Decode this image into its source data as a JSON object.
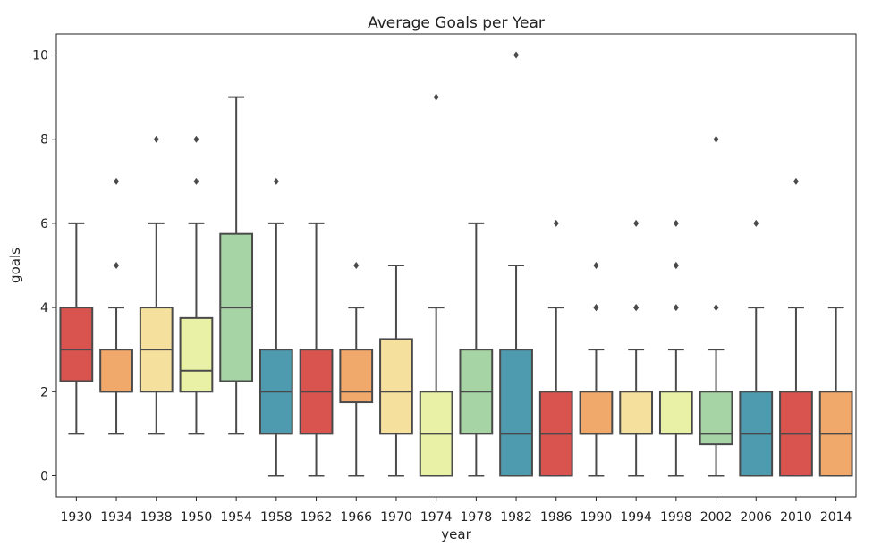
{
  "chart_data": {
    "type": "box",
    "title": "Average Goals per Year",
    "xlabel": "year",
    "ylabel": "goals",
    "ylim": [
      -0.5,
      10.5
    ],
    "yticks": [
      0,
      2,
      4,
      6,
      8,
      10
    ],
    "grid": false,
    "palette": [
      "#d9534f",
      "#f0a86b",
      "#f5e09e",
      "#e8f1a5",
      "#a6d4a4",
      "#4e9bb0"
    ],
    "line_color": "#4a4a4a",
    "categories": [
      "1930",
      "1934",
      "1938",
      "1950",
      "1954",
      "1958",
      "1962",
      "1966",
      "1970",
      "1974",
      "1978",
      "1982",
      "1986",
      "1990",
      "1994",
      "1998",
      "2002",
      "2006",
      "2010",
      "2014"
    ],
    "boxes": [
      {
        "year": "1930",
        "whisker_low": 1,
        "q1": 2.25,
        "median": 3,
        "q3": 4,
        "whisker_high": 6,
        "outliers": []
      },
      {
        "year": "1934",
        "whisker_low": 1,
        "q1": 2,
        "median": 2,
        "q3": 3,
        "whisker_high": 4,
        "outliers": [
          5,
          7
        ]
      },
      {
        "year": "1938",
        "whisker_low": 1,
        "q1": 2,
        "median": 3,
        "q3": 4,
        "whisker_high": 6,
        "outliers": [
          8
        ]
      },
      {
        "year": "1950",
        "whisker_low": 1,
        "q1": 2,
        "median": 2.5,
        "q3": 3.75,
        "whisker_high": 6,
        "outliers": [
          7,
          8
        ]
      },
      {
        "year": "1954",
        "whisker_low": 1,
        "q1": 2.25,
        "median": 4,
        "q3": 5.75,
        "whisker_high": 9,
        "outliers": []
      },
      {
        "year": "1958",
        "whisker_low": 0,
        "q1": 1,
        "median": 2,
        "q3": 3,
        "whisker_high": 6,
        "outliers": [
          7
        ]
      },
      {
        "year": "1962",
        "whisker_low": 0,
        "q1": 1,
        "median": 2,
        "q3": 3,
        "whisker_high": 6,
        "outliers": []
      },
      {
        "year": "1966",
        "whisker_low": 0,
        "q1": 1.75,
        "median": 2,
        "q3": 3,
        "whisker_high": 4,
        "outliers": [
          5
        ]
      },
      {
        "year": "1970",
        "whisker_low": 0,
        "q1": 1,
        "median": 2,
        "q3": 3.25,
        "whisker_high": 5,
        "outliers": []
      },
      {
        "year": "1974",
        "whisker_low": 0,
        "q1": 0,
        "median": 1,
        "q3": 2,
        "whisker_high": 4,
        "outliers": [
          9
        ]
      },
      {
        "year": "1978",
        "whisker_low": 0,
        "q1": 1,
        "median": 2,
        "q3": 3,
        "whisker_high": 6,
        "outliers": []
      },
      {
        "year": "1982",
        "whisker_low": 0,
        "q1": 0,
        "median": 1,
        "q3": 3,
        "whisker_high": 5,
        "outliers": [
          10
        ]
      },
      {
        "year": "1986",
        "whisker_low": 0,
        "q1": 0,
        "median": 1,
        "q3": 2,
        "whisker_high": 4,
        "outliers": [
          6
        ]
      },
      {
        "year": "1990",
        "whisker_low": 0,
        "q1": 1,
        "median": 1,
        "q3": 2,
        "whisker_high": 3,
        "outliers": [
          4,
          4,
          5
        ]
      },
      {
        "year": "1994",
        "whisker_low": 0,
        "q1": 1,
        "median": 1,
        "q3": 2,
        "whisker_high": 3,
        "outliers": [
          4,
          4,
          6
        ]
      },
      {
        "year": "1998",
        "whisker_low": 0,
        "q1": 1,
        "median": 1,
        "q3": 2,
        "whisker_high": 3,
        "outliers": [
          4,
          5,
          5,
          6
        ]
      },
      {
        "year": "2002",
        "whisker_low": 0,
        "q1": 0.75,
        "median": 1,
        "q3": 2,
        "whisker_high": 3,
        "outliers": [
          4,
          8
        ]
      },
      {
        "year": "2006",
        "whisker_low": 0,
        "q1": 0,
        "median": 1,
        "q3": 2,
        "whisker_high": 4,
        "outliers": [
          6
        ]
      },
      {
        "year": "2010",
        "whisker_low": 0,
        "q1": 0,
        "median": 1,
        "q3": 2,
        "whisker_high": 4,
        "outliers": [
          7
        ]
      },
      {
        "year": "2014",
        "whisker_low": 0,
        "q1": 0,
        "median": 1,
        "q3": 2,
        "whisker_high": 4,
        "outliers": []
      }
    ]
  }
}
